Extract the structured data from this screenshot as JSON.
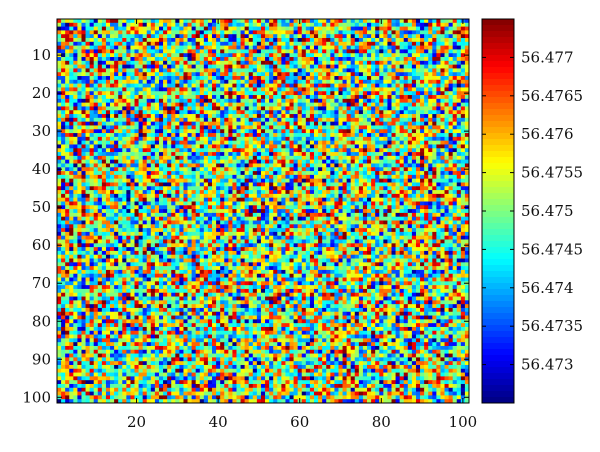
{
  "chart_data": {
    "type": "heatmap",
    "title": "",
    "xlabel": "",
    "ylabel": "",
    "rows": 101,
    "cols": 101,
    "value_range": [
      56.4725,
      56.4775
    ],
    "colormap": "jet",
    "pattern": "random noise (no visible structure)",
    "x_ticks": [
      20,
      40,
      60,
      80,
      100
    ],
    "y_ticks": [
      10,
      20,
      30,
      40,
      50,
      60,
      70,
      80,
      90,
      100
    ],
    "colorbar_ticks": [
      {
        "value": 56.477,
        "label": "56.477"
      },
      {
        "value": 56.4765,
        "label": "56.4765"
      },
      {
        "value": 56.476,
        "label": "56.476"
      },
      {
        "value": 56.4755,
        "label": "56.4755"
      },
      {
        "value": 56.475,
        "label": "56.475"
      },
      {
        "value": 56.4745,
        "label": "56.4745"
      },
      {
        "value": 56.474,
        "label": "56.474"
      },
      {
        "value": 56.4735,
        "label": "56.4735"
      },
      {
        "value": 56.473,
        "label": "56.473"
      }
    ]
  }
}
